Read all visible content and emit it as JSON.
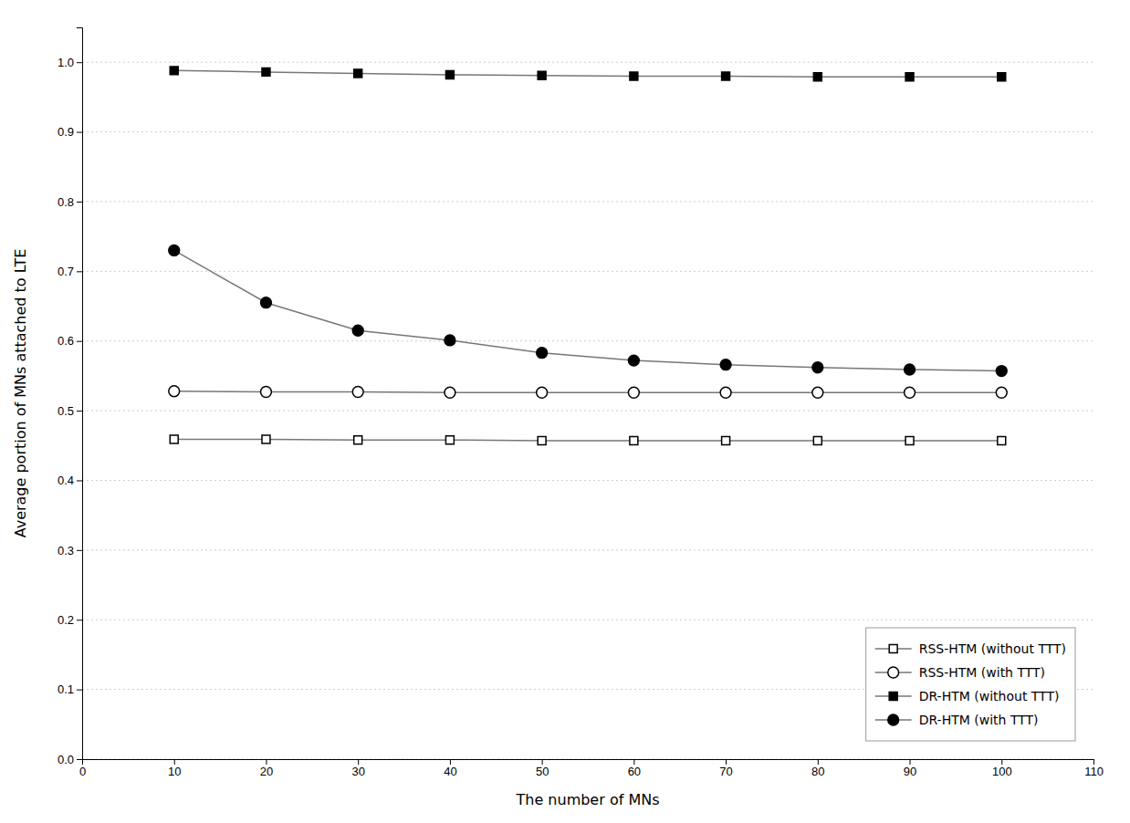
{
  "chart_data": {
    "type": "line",
    "x_label": "The number of MNs",
    "y_label": "Average portion of MNs attached to LTE",
    "x": [
      10,
      20,
      30,
      40,
      50,
      60,
      70,
      80,
      90,
      100
    ],
    "series": [
      {
        "name": "RSS-HTM (without TTT)",
        "color": "#777777",
        "marker": "square-open",
        "values": [
          0.459,
          0.459,
          0.458,
          0.458,
          0.457,
          0.457,
          0.457,
          0.457,
          0.457,
          0.457
        ]
      },
      {
        "name": "RSS-HTM (with TTT)",
        "color": "#777777",
        "marker": "circle-open",
        "values": [
          0.528,
          0.527,
          0.527,
          0.526,
          0.526,
          0.526,
          0.526,
          0.526,
          0.526,
          0.526
        ]
      },
      {
        "name": "DR-HTM (without TTT)",
        "color": "#777777",
        "marker": "square",
        "values": [
          0.988,
          0.986,
          0.984,
          0.982,
          0.981,
          0.98,
          0.98,
          0.979,
          0.979,
          0.979
        ]
      },
      {
        "name": "DR-HTM (with TTT)",
        "color": "#777777",
        "marker": "circle",
        "values": [
          0.73,
          0.655,
          0.615,
          0.601,
          0.583,
          0.572,
          0.566,
          0.562,
          0.559,
          0.557
        ]
      }
    ],
    "xlim": [
      0,
      110
    ],
    "ylim": [
      0.0,
      1.05
    ],
    "xticks": [
      0,
      10,
      20,
      30,
      40,
      50,
      60,
      70,
      80,
      90,
      100,
      110
    ],
    "yticks": [
      {
        "value": 0.0,
        "label": "0.0"
      },
      0.1,
      0.2,
      0.3,
      0.4,
      0.5,
      0.6,
      0.7,
      0.8,
      0.9,
      {
        "value": 1.0,
        "label": "1.0"
      }
    ],
    "grid": "y",
    "legend": "lower right"
  }
}
